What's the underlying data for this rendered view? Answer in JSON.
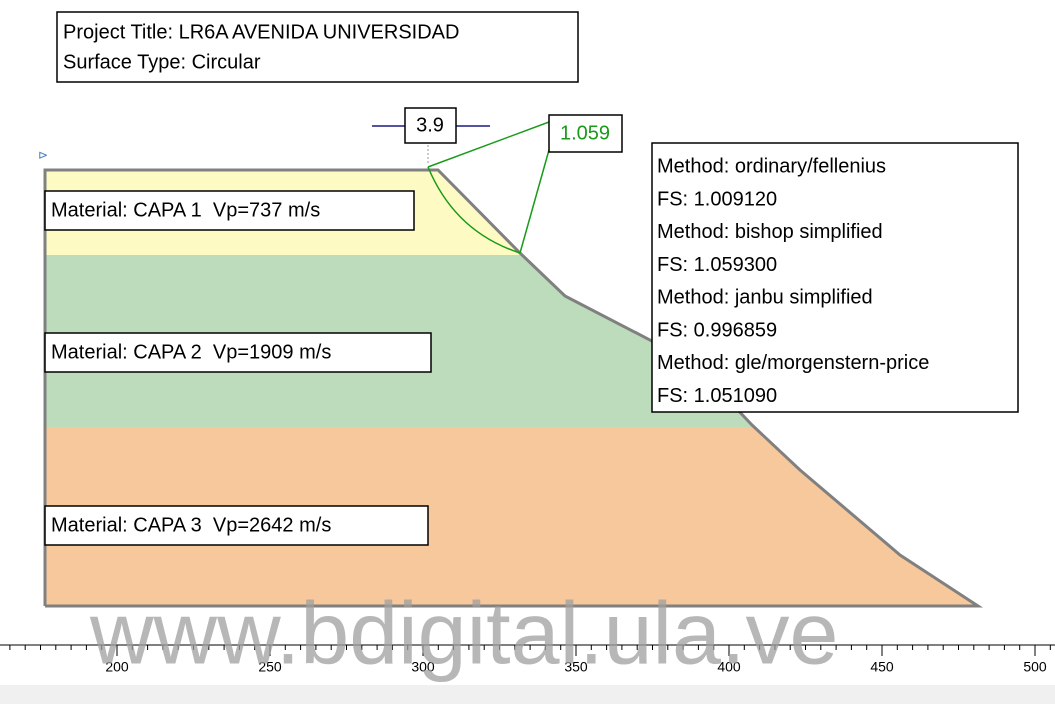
{
  "header": {
    "project_title": "Project Title: LR6A AVENIDA UNIVERSIDAD",
    "surface_type": "Surface Type: Circular"
  },
  "materials": [
    "Material: CAPA 1  Vp=737 m/s",
    "Material: CAPA 2  Vp=1909 m/s",
    "Material: CAPA 3  Vp=2642 m/s"
  ],
  "labels": {
    "radius": "3.9",
    "min_fs": "1.059"
  },
  "results": [
    {
      "method": "Method: ordinary/fellenius",
      "fs": "FS: 1.009120"
    },
    {
      "method": "Method: bishop simplified",
      "fs": "FS: 1.059300"
    },
    {
      "method": "Method: janbu simplified",
      "fs": "FS: 0.996859"
    },
    {
      "method": "Method: gle/morgenstern-price",
      "fs": "FS: 1.051090"
    }
  ],
  "ruler": {
    "ticks": [
      200,
      250,
      300,
      350,
      400,
      450,
      500
    ]
  },
  "watermark": "www.bdigital.ula.ve"
}
